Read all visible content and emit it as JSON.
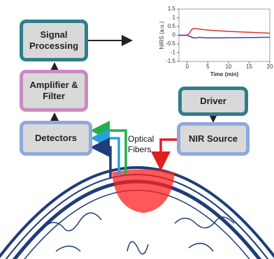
{
  "nodes": [
    {
      "label": "Signal Processing"
    },
    {
      "label": "Amplifier & Filter"
    },
    {
      "label": "Detectors"
    },
    {
      "label": "Driver"
    },
    {
      "label": "NIR Source"
    }
  ],
  "fiber_label": "Optical Fibers",
  "chart_data": {
    "type": "line",
    "ylabel": "NIRS (a.u.)",
    "xlabel": "Time (min)",
    "x": [
      -2,
      -1,
      0,
      0.5,
      1,
      1.5,
      2,
      3,
      4,
      5,
      6,
      8,
      10,
      12,
      14,
      16,
      18,
      20
    ],
    "series": [
      {
        "color": "#e03030",
        "values": [
          0,
          0,
          0,
          0.1,
          0.3,
          0.4,
          0.38,
          0.35,
          0.32,
          0.3,
          0.28,
          0.25,
          0.22,
          0.2,
          0.18,
          0.16,
          0.14,
          0.12
        ]
      },
      {
        "color": "#3b3bd0",
        "values": [
          0,
          0,
          0,
          -0.05,
          -0.1,
          -0.15,
          -0.15,
          -0.12,
          -0.14,
          -0.15,
          -0.15,
          -0.15,
          -0.14,
          -0.14,
          -0.13,
          -0.13,
          -0.12,
          -0.12
        ]
      }
    ],
    "xlim": [
      -2,
      20
    ],
    "xticks": [
      0,
      5,
      10,
      15,
      20
    ],
    "ylim": [
      -1.5,
      1.5
    ],
    "yticks": [
      -1.5,
      -1,
      -0.5,
      0,
      0.5,
      1,
      1.5
    ]
  }
}
